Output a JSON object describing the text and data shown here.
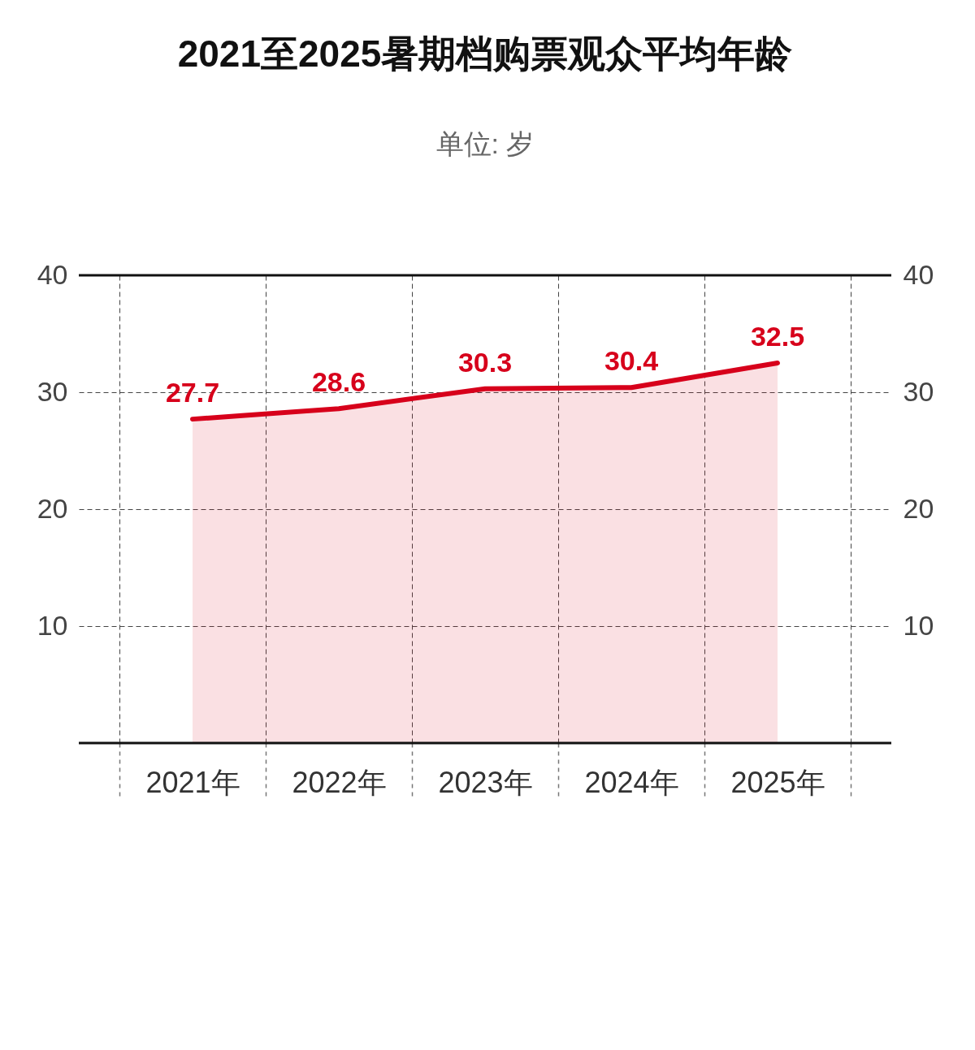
{
  "chart_data": {
    "type": "area",
    "title": "2021至2025暑期档购票观众平均年龄",
    "subtitle": "单位: 岁",
    "categories": [
      "2021年",
      "2022年",
      "2023年",
      "2024年",
      "2025年"
    ],
    "series": [
      {
        "color": "#d7001b",
        "values": [
          27.7,
          28.6,
          30.3,
          30.4,
          32.5
        ]
      }
    ],
    "ylim": [
      0,
      40
    ],
    "yticks": [
      10,
      20,
      30,
      40
    ],
    "y2lim": [
      0,
      40
    ],
    "y2ticks": [
      10,
      20,
      30,
      40
    ],
    "data_labels": true,
    "grid": true
  }
}
